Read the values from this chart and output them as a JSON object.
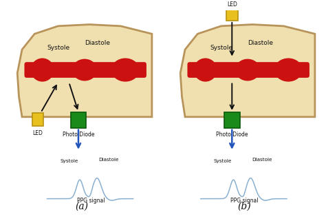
{
  "background_color": "#ffffff",
  "skin_color": "#f0e0b0",
  "skin_edge_color": "#b8935a",
  "blood_vessel_color": "#cc1111",
  "led_color": "#e8c020",
  "led_border_color": "#b89010",
  "photodiode_color": "#1a8a1a",
  "photodiode_border_color": "#0a5a0a",
  "ppg_line_color": "#8ab0d0",
  "arrow_color": "#111111",
  "blue_arrow_color": "#2255bb",
  "text_color": "#111111",
  "label_a": "(a)",
  "label_b": "(b)",
  "systole_label": "Systole",
  "diastole_label": "Diastole",
  "led_label": "LED",
  "photodiode_label": "Photo Diode",
  "ppg_label": "PPG signal"
}
